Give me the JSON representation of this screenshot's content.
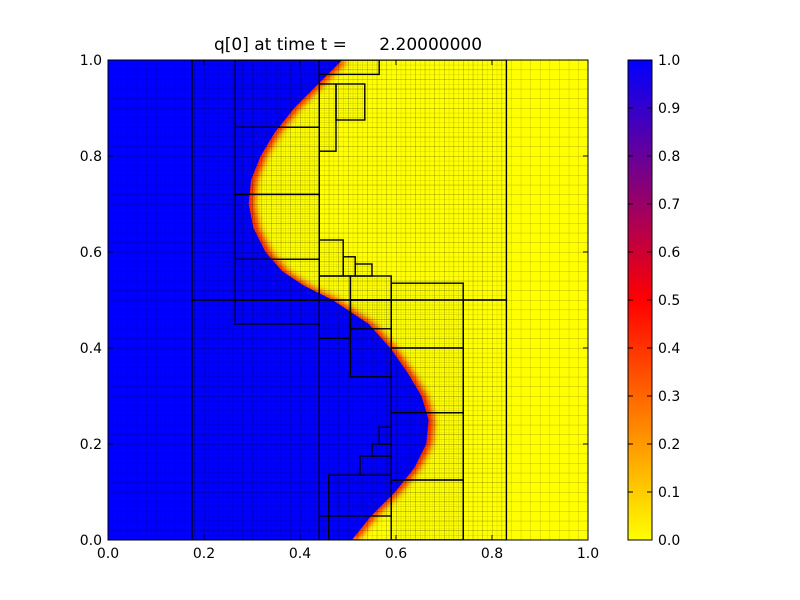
{
  "chart_data": {
    "type": "heatmap",
    "title": "q[0] at time t =      2.20000000",
    "xlim": [
      0.0,
      1.0
    ],
    "ylim": [
      0.0,
      1.0
    ],
    "x_ticks": [
      "0.0",
      "0.2",
      "0.4",
      "0.6",
      "0.8",
      "1.0"
    ],
    "y_ticks": [
      "0.0",
      "0.2",
      "0.4",
      "0.6",
      "0.8",
      "1.0"
    ],
    "colorbar": {
      "range": [
        0.0,
        1.0
      ],
      "ticks": [
        "0.0",
        "0.1",
        "0.2",
        "0.3",
        "0.4",
        "0.5",
        "0.6",
        "0.7",
        "0.8",
        "0.9",
        "1.0"
      ],
      "colors": [
        "#ffff00",
        "#ff8000",
        "#ff0000",
        "#800080",
        "#0000ff"
      ]
    },
    "field": {
      "high_value": 1.0,
      "low_value": 0.0,
      "interface_x": [
        [
          0.0,
          0.52
        ],
        [
          0.05,
          0.56
        ],
        [
          0.1,
          0.61
        ],
        [
          0.15,
          0.65
        ],
        [
          0.2,
          0.675
        ],
        [
          0.25,
          0.68
        ],
        [
          0.3,
          0.665
        ],
        [
          0.35,
          0.635
        ],
        [
          0.4,
          0.6
        ],
        [
          0.45,
          0.555
        ],
        [
          0.5,
          0.48
        ],
        [
          0.53,
          0.42
        ],
        [
          0.56,
          0.375
        ],
        [
          0.6,
          0.34
        ],
        [
          0.65,
          0.315
        ],
        [
          0.7,
          0.305
        ],
        [
          0.75,
          0.31
        ],
        [
          0.8,
          0.33
        ],
        [
          0.85,
          0.36
        ],
        [
          0.9,
          0.4
        ],
        [
          0.95,
          0.45
        ],
        [
          1.0,
          0.5
        ]
      ]
    },
    "amr_patches_level2": [
      [
        0.175,
        0.0,
        0.44,
        0.5
      ],
      [
        0.44,
        0.0,
        0.74,
        0.5
      ],
      [
        0.74,
        0.0,
        0.83,
        0.5
      ],
      [
        0.175,
        0.5,
        0.44,
        1.0
      ],
      [
        0.44,
        0.5,
        0.83,
        1.0
      ]
    ],
    "amr_patches_level3": [
      [
        0.265,
        0.45,
        0.44,
        0.5
      ],
      [
        0.265,
        0.5,
        0.44,
        0.585
      ],
      [
        0.265,
        0.585,
        0.44,
        0.72
      ],
      [
        0.265,
        0.72,
        0.44,
        0.86
      ],
      [
        0.265,
        0.86,
        0.44,
        1.0
      ],
      [
        0.44,
        0.97,
        0.565,
        1.0
      ],
      [
        0.44,
        0.81,
        0.475,
        0.95
      ],
      [
        0.475,
        0.875,
        0.535,
        0.95
      ],
      [
        0.44,
        0.55,
        0.49,
        0.625
      ],
      [
        0.49,
        0.55,
        0.515,
        0.59
      ],
      [
        0.515,
        0.55,
        0.55,
        0.575
      ],
      [
        0.44,
        0.42,
        0.505,
        0.55
      ],
      [
        0.505,
        0.5,
        0.59,
        0.55
      ],
      [
        0.505,
        0.34,
        0.59,
        0.5
      ],
      [
        0.505,
        0.44,
        0.59,
        0.5
      ],
      [
        0.59,
        0.4,
        0.74,
        0.535
      ],
      [
        0.59,
        0.265,
        0.74,
        0.4
      ],
      [
        0.59,
        0.125,
        0.74,
        0.265
      ],
      [
        0.59,
        0.0,
        0.74,
        0.125
      ],
      [
        0.44,
        0.0,
        0.46,
        0.05
      ],
      [
        0.46,
        0.05,
        0.59,
        0.135
      ],
      [
        0.525,
        0.135,
        0.59,
        0.175
      ],
      [
        0.55,
        0.175,
        0.59,
        0.2
      ],
      [
        0.565,
        0.2,
        0.59,
        0.235
      ]
    ],
    "grid": true,
    "xlabel": "",
    "ylabel": ""
  }
}
